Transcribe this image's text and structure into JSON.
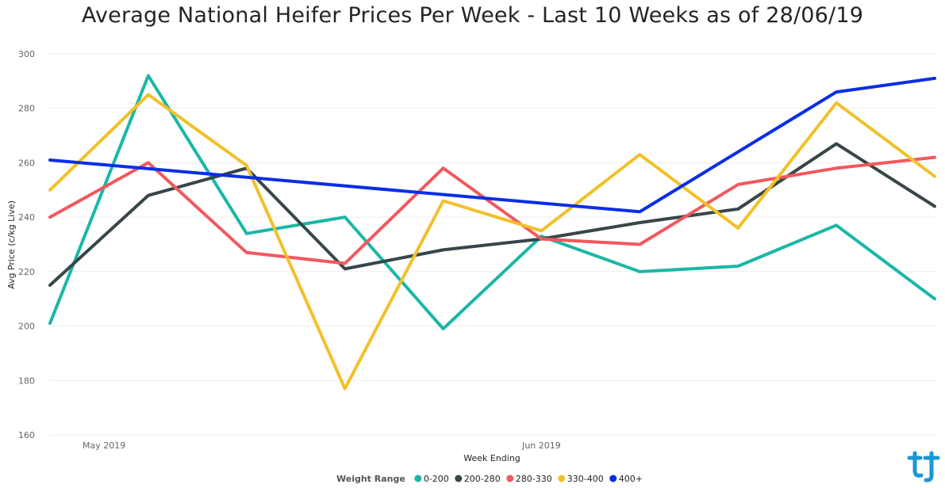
{
  "chart_data": {
    "type": "line",
    "title": "Average National Heifer Prices Per Week - Last 10 Weeks as of 28/06/19",
    "xlabel": "Week Ending",
    "ylabel": "Avg Price (c/kg Live)",
    "ylim": [
      160,
      300
    ],
    "yticks": [
      160,
      180,
      200,
      220,
      240,
      260,
      280,
      300
    ],
    "x_tick_labels": [
      {
        "label": "May 2019",
        "index": 0.55
      },
      {
        "label": "Jun 2019",
        "index": 5.0
      }
    ],
    "x": [
      0,
      1,
      2,
      3,
      4,
      5,
      6,
      7,
      8,
      9
    ],
    "grid": true,
    "legend_placement": "bottom-center",
    "legend_title": "Weight Range",
    "series": [
      {
        "name": "0-200",
        "color": "#1AB7A6",
        "values": [
          201,
          292,
          234,
          240,
          199,
          233,
          220,
          222,
          237,
          210
        ]
      },
      {
        "name": "200-280",
        "color": "#374649",
        "values": [
          215,
          248,
          258,
          221,
          228,
          232,
          238,
          243,
          267,
          244
        ]
      },
      {
        "name": "280-330",
        "color": "#F2585E",
        "values": [
          240,
          260,
          227,
          223,
          258,
          232,
          230,
          252,
          258,
          262
        ]
      },
      {
        "name": "330-400",
        "color": "#F2C029",
        "values": [
          250,
          285,
          259,
          177,
          246,
          235,
          263,
          236,
          282,
          255
        ]
      },
      {
        "name": "400+",
        "color": "#0A2EE6",
        "values": [
          261,
          null,
          null,
          null,
          null,
          null,
          242,
          null,
          286,
          291
        ]
      }
    ]
  },
  "logo": {
    "name": "t-logo",
    "color": "#1A97D4"
  }
}
